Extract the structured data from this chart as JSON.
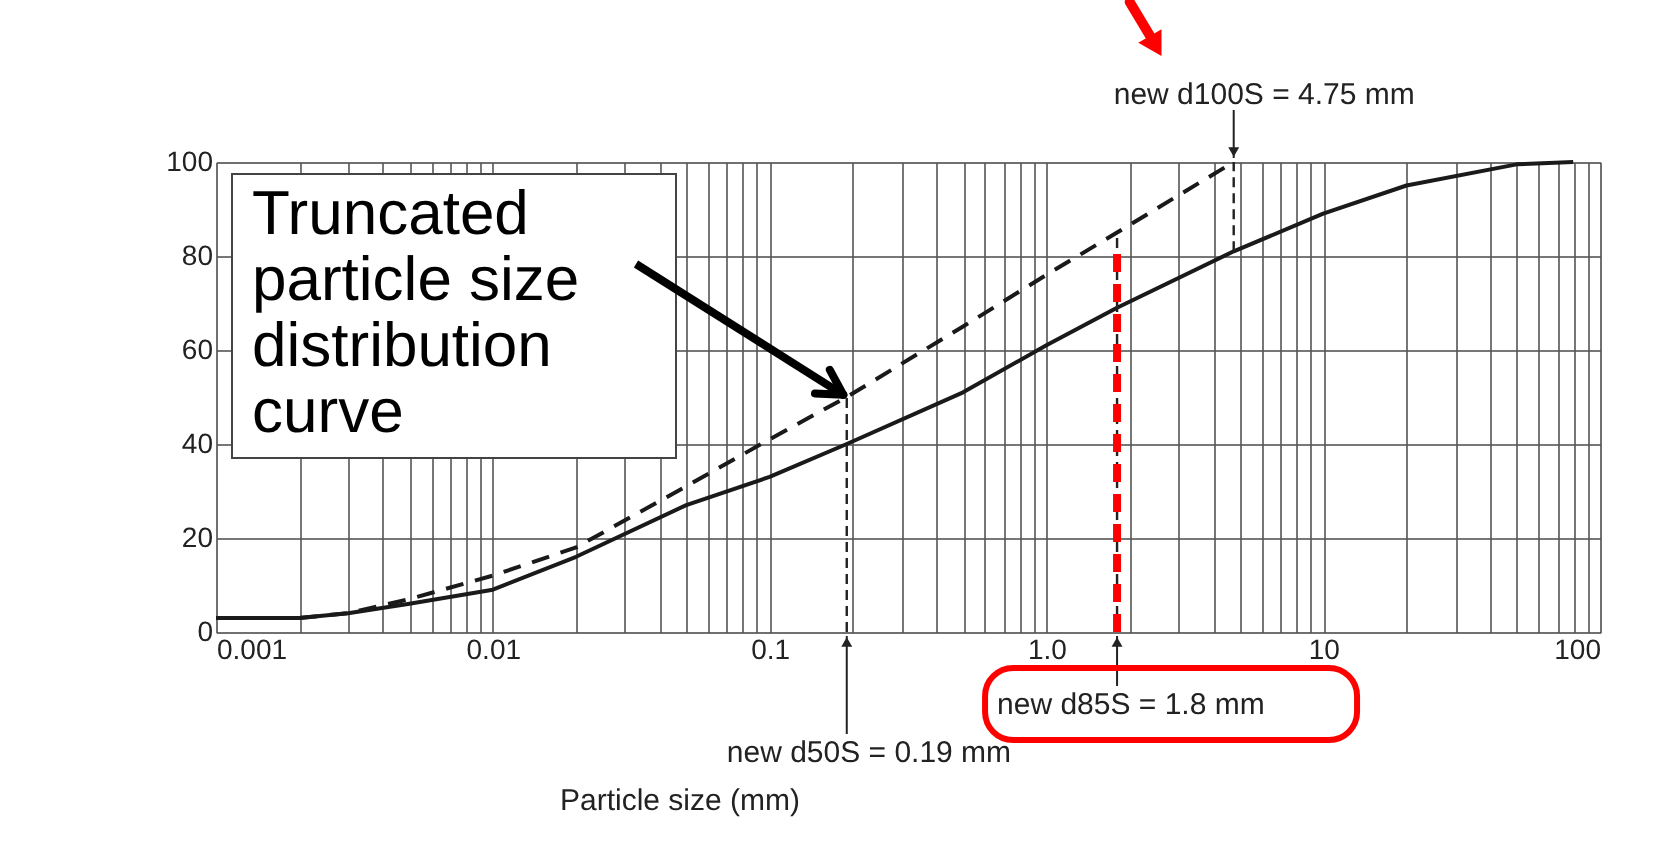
{
  "chart_data": {
    "type": "line",
    "xlabel": "Particle size (mm)",
    "xlim": [
      0.001,
      100
    ],
    "ylim": [
      0,
      100
    ],
    "log": "x",
    "xticks": [
      0.001,
      {
        "value": 0.002,
        "label": null
      },
      {
        "value": 0.003,
        "label": null
      },
      {
        "value": 0.004,
        "label": null
      },
      {
        "value": 0.005,
        "label": null
      },
      {
        "value": 0.006,
        "label": null
      },
      {
        "value": 0.007,
        "label": null
      },
      {
        "value": 0.008,
        "label": null
      },
      {
        "value": 0.009,
        "label": null
      },
      0.01,
      {
        "value": 0.02,
        "label": null
      },
      {
        "value": 0.03,
        "label": null
      },
      {
        "value": 0.04,
        "label": null
      },
      {
        "value": 0.05,
        "label": null
      },
      {
        "value": 0.06,
        "label": null
      },
      {
        "value": 0.07,
        "label": null
      },
      {
        "value": 0.08,
        "label": null
      },
      {
        "value": 0.09,
        "label": null
      },
      0.1,
      {
        "value": 0.2,
        "label": null
      },
      {
        "value": 0.3,
        "label": null
      },
      {
        "value": 0.4,
        "label": null
      },
      {
        "value": 0.5,
        "label": null
      },
      {
        "value": 0.6,
        "label": null
      },
      {
        "value": 0.7,
        "label": null
      },
      {
        "value": 0.8,
        "label": null
      },
      {
        "value": 0.9,
        "label": null
      },
      {
        "value": 1,
        "label": "1.0"
      },
      {
        "value": 2,
        "label": null
      },
      {
        "value": 3,
        "label": null
      },
      {
        "value": 4,
        "label": null
      },
      {
        "value": 5,
        "label": null
      },
      {
        "value": 6,
        "label": null
      },
      {
        "value": 7,
        "label": null
      },
      {
        "value": 8,
        "label": null
      },
      {
        "value": 9,
        "label": null
      },
      10,
      {
        "value": 20,
        "label": null
      },
      {
        "value": 30,
        "label": null
      },
      {
        "value": 40,
        "label": null
      },
      {
        "value": 50,
        "label": null
      },
      {
        "value": 60,
        "label": null
      },
      {
        "value": 70,
        "label": null
      },
      {
        "value": 80,
        "label": null
      },
      {
        "value": 90,
        "label": null
      },
      100
    ],
    "yticks": [
      0,
      20,
      40,
      60,
      80,
      100
    ],
    "grid": true,
    "marker": "none",
    "series": [
      {
        "color": "#1a1a1a",
        "line_style": "solid",
        "x": [
          0.001,
          0.002,
          0.003,
          0.005,
          0.01,
          0.02,
          0.05,
          0.1,
          0.19,
          0.5,
          1,
          1.8,
          4.75,
          10,
          20,
          50,
          80
        ],
        "values": [
          3,
          3,
          4,
          6,
          9,
          16,
          27,
          33,
          40,
          51,
          61,
          69,
          81,
          89,
          95,
          99.5,
          100
        ]
      },
      {
        "color": "#1a1a1a",
        "line_style": "dashed",
        "x": [
          0.002,
          0.003,
          0.005,
          0.01,
          0.02,
          0.05,
          0.1,
          0.19,
          0.5,
          1,
          1.8,
          4.75
        ],
        "values": [
          3,
          4,
          7,
          12,
          18,
          31,
          41,
          50,
          65,
          76,
          85,
          100
        ]
      },
      {
        "color": "#222222",
        "line_style": "dashed",
        "x": [
          0.19,
          0.19
        ],
        "values": [
          0,
          50
        ]
      },
      {
        "color": "#222222",
        "line_style": "dashed",
        "x": [
          1.8,
          1.8
        ],
        "values": [
          0,
          85
        ]
      },
      {
        "color": "#222222",
        "line_style": "dashed",
        "x": [
          4.75,
          4.75
        ],
        "values": [
          81,
          100
        ]
      },
      {
        "color": "#ff0000",
        "line_style": "dashed",
        "x": [
          1.8,
          1.8
        ],
        "values": [
          0,
          81
        ]
      }
    ],
    "annotations": [
      {
        "text": "Truncated particle size distribution curve",
        "x": 0.19,
        "y": 50
      },
      {
        "text": "new d50S = 0.19 mm",
        "x": 0.19,
        "y": 0
      },
      {
        "text": "new d85S = 1.8 mm",
        "x": 1.8,
        "y": 0
      },
      {
        "text": "new d100S = 4.75 mm",
        "x": 4.75,
        "y": 100
      }
    ]
  }
}
